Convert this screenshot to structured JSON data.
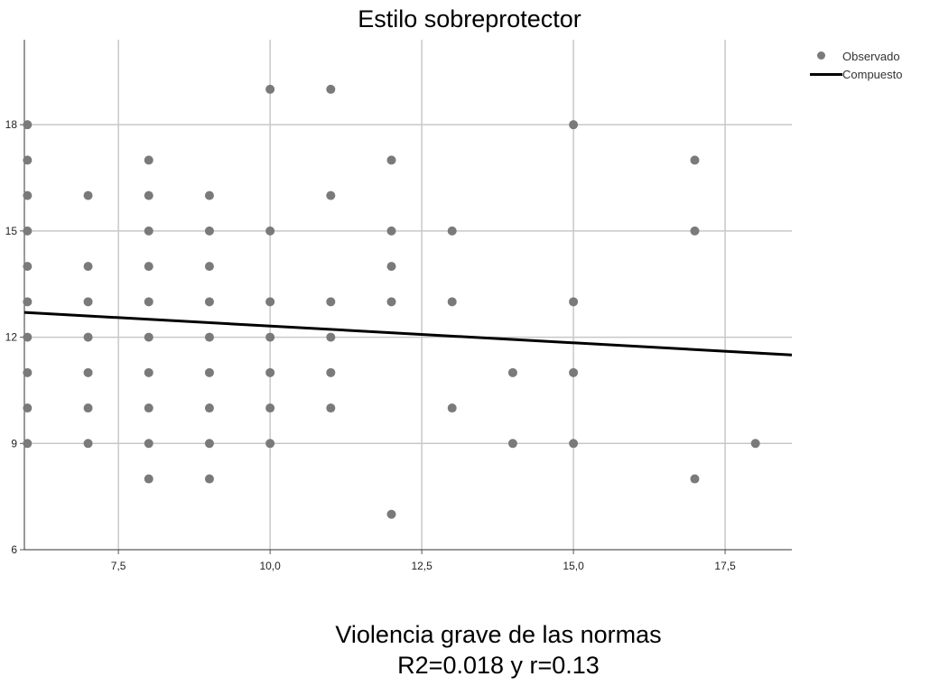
{
  "chart_data": {
    "type": "scatter",
    "title": "Estilo sobreprotector",
    "xlabel": "Violencia grave de las normas",
    "subtitle": "R2=0.018 y r=0.13",
    "ylabel": "",
    "xlim": [
      5.95,
      18.6
    ],
    "ylim": [
      6,
      20.4
    ],
    "x_ticks": [
      "7,5",
      "10,0",
      "12,5",
      "15,0",
      "17,5"
    ],
    "x_tick_values": [
      7.5,
      10,
      12.5,
      15,
      17.5
    ],
    "y_ticks": [
      "6",
      "9",
      "12",
      "15",
      "18"
    ],
    "y_tick_values": [
      6,
      9,
      12,
      15,
      18
    ],
    "grid": true,
    "legend_position": "top-right",
    "series": [
      {
        "name": "Observado",
        "kind": "points",
        "color": "#7a7a7a",
        "points": [
          [
            6,
            18
          ],
          [
            6,
            17
          ],
          [
            6,
            16
          ],
          [
            6,
            15
          ],
          [
            6,
            14
          ],
          [
            6,
            13
          ],
          [
            6,
            12
          ],
          [
            6,
            11
          ],
          [
            6,
            10
          ],
          [
            6,
            9
          ],
          [
            7,
            16
          ],
          [
            7,
            14
          ],
          [
            7,
            13
          ],
          [
            7,
            12
          ],
          [
            7,
            11
          ],
          [
            7,
            10
          ],
          [
            7,
            9
          ],
          [
            8,
            17
          ],
          [
            8,
            16
          ],
          [
            8,
            15
          ],
          [
            8,
            14
          ],
          [
            8,
            13
          ],
          [
            8,
            12
          ],
          [
            8,
            11
          ],
          [
            8,
            10
          ],
          [
            8,
            9
          ],
          [
            8,
            8
          ],
          [
            9,
            16
          ],
          [
            9,
            15
          ],
          [
            9,
            14
          ],
          [
            9,
            13
          ],
          [
            9,
            12
          ],
          [
            9,
            11
          ],
          [
            9,
            10
          ],
          [
            9,
            9
          ],
          [
            9,
            8
          ],
          [
            10,
            19
          ],
          [
            10,
            15
          ],
          [
            10,
            13
          ],
          [
            10,
            12
          ],
          [
            10,
            11
          ],
          [
            10,
            10
          ],
          [
            10,
            9
          ],
          [
            11,
            19
          ],
          [
            11,
            16
          ],
          [
            11,
            13
          ],
          [
            11,
            12
          ],
          [
            11,
            11
          ],
          [
            11,
            10
          ],
          [
            12,
            17
          ],
          [
            12,
            15
          ],
          [
            12,
            14
          ],
          [
            12,
            13
          ],
          [
            12,
            7
          ],
          [
            13,
            15
          ],
          [
            13,
            13
          ],
          [
            13,
            10
          ],
          [
            14,
            11
          ],
          [
            14,
            9
          ],
          [
            15,
            18
          ],
          [
            15,
            13
          ],
          [
            15,
            11
          ],
          [
            15,
            9
          ],
          [
            17,
            17
          ],
          [
            17,
            15
          ],
          [
            17,
            8
          ],
          [
            18,
            9
          ]
        ]
      },
      {
        "name": "Compuesto",
        "kind": "line",
        "color": "#000000",
        "points": [
          [
            5.95,
            12.7
          ],
          [
            18.6,
            11.5
          ]
        ]
      }
    ]
  }
}
